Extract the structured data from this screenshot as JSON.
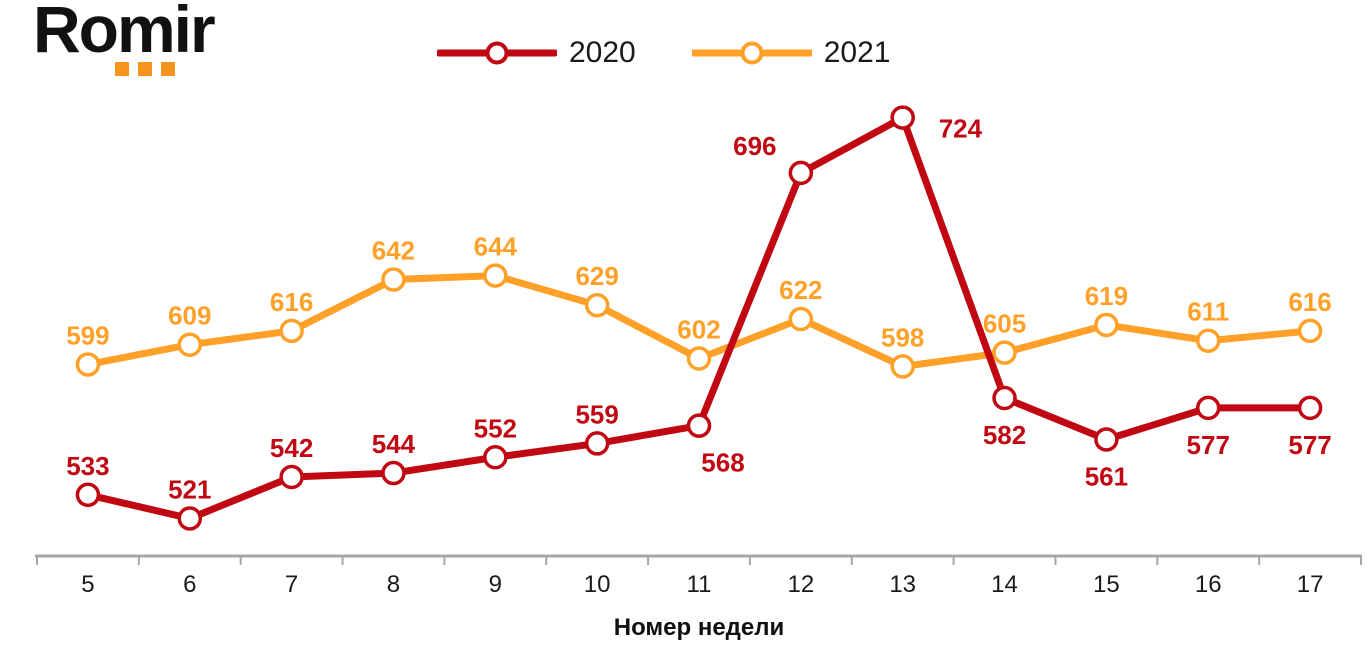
{
  "logo": {
    "text": "Romir",
    "dot_color": "#F7941D",
    "text_color": "#111111"
  },
  "legend": {
    "items": [
      {
        "label": "2020",
        "color": "#C00712"
      },
      {
        "label": "2021",
        "color": "#FFA028"
      }
    ]
  },
  "chart_data": {
    "type": "line",
    "title": "",
    "xlabel": "Номер недели",
    "ylabel": "",
    "x": [
      5,
      6,
      7,
      8,
      9,
      10,
      11,
      12,
      13,
      14,
      15,
      16,
      17
    ],
    "series": [
      {
        "name": "2020",
        "color": "#C00712",
        "values": [
          533,
          521,
          542,
          544,
          552,
          559,
          568,
          696,
          724,
          582,
          561,
          577,
          577
        ],
        "label_placement": [
          "above",
          "above",
          "above",
          "above",
          "above",
          "above",
          "below-right",
          "above-left",
          "right",
          "below",
          "below",
          "below",
          "below"
        ]
      },
      {
        "name": "2021",
        "color": "#FFA028",
        "values": [
          599,
          609,
          616,
          642,
          644,
          629,
          602,
          622,
          598,
          605,
          619,
          611,
          616
        ],
        "label_placement": [
          "above",
          "above",
          "above",
          "above",
          "above",
          "above",
          "above",
          "above",
          "above",
          "above",
          "above",
          "above",
          "above"
        ]
      }
    ],
    "ylim": [
      502,
      740
    ],
    "grid": false,
    "data_labels": true,
    "legend_position": "top",
    "axis_color": "#A6A6A6",
    "tick_label_color": "#1a1a1a",
    "marker": "circle-open"
  }
}
